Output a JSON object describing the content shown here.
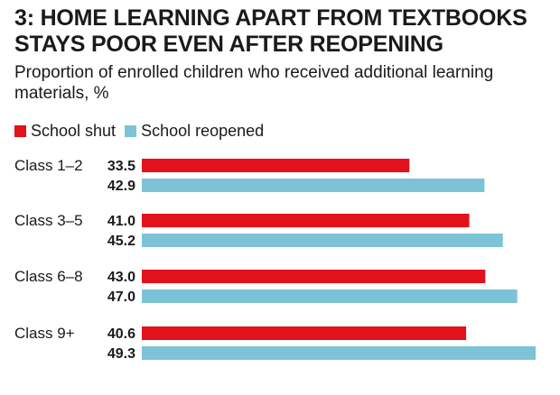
{
  "title": "3: HOME LEARNING APART FROM TEXTBOOKS STAYS POOR EVEN AFTER REOPENING",
  "subtitle": "Proportion of enrolled children who received additional learning materials, %",
  "colors": {
    "school_shut": "#e3111b",
    "school_reopened": "#7cc3d8"
  },
  "chart_data": {
    "type": "bar",
    "orientation": "horizontal",
    "title": "3: HOME LEARNING APART FROM TEXTBOOKS STAYS POOR EVEN AFTER REOPENING",
    "subtitle": "Proportion of enrolled children who received additional learning materials, %",
    "categories": [
      "Class 1-2",
      "Class 3-5",
      "Class 6-8",
      "Class 9+"
    ],
    "series": [
      {
        "name": "School shut",
        "values": [
          33.5,
          41.0,
          43.0,
          40.6
        ],
        "labels": [
          "33.5",
          "41.0",
          "43.0",
          "40.6"
        ]
      },
      {
        "name": "School reopened",
        "values": [
          42.9,
          45.2,
          47.0,
          49.3
        ],
        "labels": [
          "42.9",
          "45.2",
          "47.0",
          "49.3"
        ]
      }
    ],
    "xlim": [
      0,
      49.3
    ],
    "grid": false,
    "legend": "top-left"
  }
}
